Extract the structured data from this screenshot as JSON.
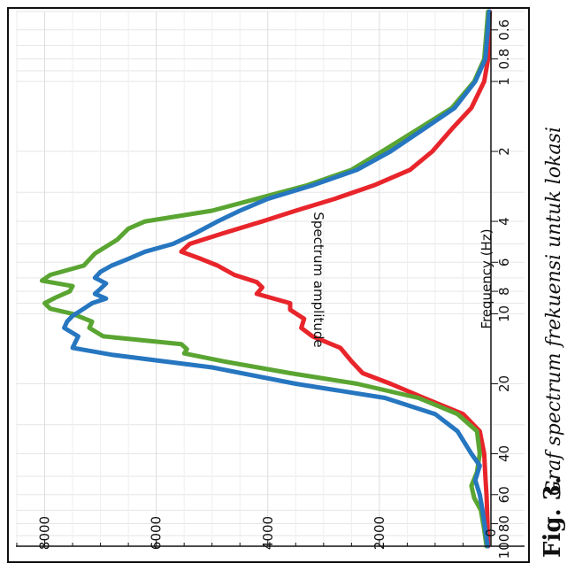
{
  "chart_data": {
    "type": "line",
    "xlabel": "Frequency (Hz)",
    "ylabel": "Spectrum amplitude",
    "x_scale": "log",
    "xlim": [
      0.5,
      100
    ],
    "ylim": [
      0,
      8500
    ],
    "grid": true,
    "x_ticks": [
      {
        "value": 0.6,
        "label": "0.6"
      },
      {
        "value": 0.8,
        "label": "0.8"
      },
      {
        "value": 1,
        "label": "1"
      },
      {
        "value": 2,
        "label": "2"
      },
      {
        "value": 4,
        "label": "4"
      },
      {
        "value": 6,
        "label": "6"
      },
      {
        "value": 8,
        "label": "8"
      },
      {
        "value": 10,
        "label": "10"
      },
      {
        "value": 20,
        "label": "20"
      },
      {
        "value": 40,
        "label": "40"
      },
      {
        "value": 60,
        "label": "60"
      },
      {
        "value": 80,
        "label": "80"
      },
      {
        "value": 100,
        "label": "100"
      }
    ],
    "y_ticks": [
      {
        "value": 0,
        "label": "0"
      },
      {
        "value": 2000,
        "label": "2000"
      },
      {
        "value": 4000,
        "label": "4000"
      },
      {
        "value": 6000,
        "label": "6000"
      },
      {
        "value": 8000,
        "label": "8000"
      }
    ],
    "series": [
      {
        "color": "#e8252b",
        "points": [
          [
            0.5,
            20
          ],
          [
            0.8,
            50
          ],
          [
            1.0,
            120
          ],
          [
            1.3,
            350
          ],
          [
            1.6,
            700
          ],
          [
            2.0,
            1050
          ],
          [
            2.4,
            1450
          ],
          [
            2.8,
            2100
          ],
          [
            3.2,
            2800
          ],
          [
            3.6,
            3500
          ],
          [
            4.0,
            4100
          ],
          [
            4.5,
            4800
          ],
          [
            5.0,
            5400
          ],
          [
            5.4,
            5550
          ],
          [
            5.8,
            5200
          ],
          [
            6.2,
            4900
          ],
          [
            6.8,
            4600
          ],
          [
            7.3,
            4200
          ],
          [
            7.7,
            4100
          ],
          [
            8.2,
            4200
          ],
          [
            9.0,
            3600
          ],
          [
            9.6,
            3600
          ],
          [
            10.5,
            3350
          ],
          [
            11.5,
            3400
          ],
          [
            12.5,
            3200
          ],
          [
            14,
            2700
          ],
          [
            16,
            2500
          ],
          [
            18,
            2300
          ],
          [
            20,
            1800
          ],
          [
            23,
            1200
          ],
          [
            27,
            500
          ],
          [
            32,
            200
          ],
          [
            40,
            120
          ],
          [
            50,
            100
          ],
          [
            60,
            80
          ],
          [
            80,
            60
          ],
          [
            100,
            50
          ]
        ]
      },
      {
        "color": "#5aa532",
        "points": [
          [
            0.5,
            50
          ],
          [
            0.8,
            120
          ],
          [
            1.0,
            300
          ],
          [
            1.3,
            700
          ],
          [
            1.6,
            1300
          ],
          [
            2.0,
            1950
          ],
          [
            2.4,
            2500
          ],
          [
            2.8,
            3300
          ],
          [
            3.2,
            4200
          ],
          [
            3.6,
            5000
          ],
          [
            4.0,
            6200
          ],
          [
            4.3,
            6500
          ],
          [
            4.8,
            6700
          ],
          [
            5.5,
            7100
          ],
          [
            6.2,
            7300
          ],
          [
            6.8,
            7900
          ],
          [
            7.2,
            8050
          ],
          [
            7.6,
            7500
          ],
          [
            8.0,
            7550
          ],
          [
            8.5,
            7800
          ],
          [
            9.0,
            8000
          ],
          [
            9.5,
            7900
          ],
          [
            10.0,
            7500
          ],
          [
            10.8,
            7150
          ],
          [
            11.5,
            7200
          ],
          [
            12.5,
            6950
          ],
          [
            13.5,
            5550
          ],
          [
            14.2,
            5450
          ],
          [
            14.8,
            5500
          ],
          [
            16,
            4800
          ],
          [
            18,
            3600
          ],
          [
            20,
            2400
          ],
          [
            23,
            1300
          ],
          [
            27,
            600
          ],
          [
            32,
            250
          ],
          [
            40,
            200
          ],
          [
            48,
            250
          ],
          [
            55,
            350
          ],
          [
            62,
            300
          ],
          [
            70,
            180
          ],
          [
            85,
            120
          ],
          [
            100,
            80
          ]
        ]
      },
      {
        "color": "#2676c0",
        "points": [
          [
            0.5,
            30
          ],
          [
            0.8,
            100
          ],
          [
            1.0,
            280
          ],
          [
            1.3,
            650
          ],
          [
            1.6,
            1200
          ],
          [
            2.0,
            1800
          ],
          [
            2.4,
            2400
          ],
          [
            2.8,
            3200
          ],
          [
            3.2,
            4000
          ],
          [
            3.6,
            4500
          ],
          [
            4.0,
            4900
          ],
          [
            4.5,
            5300
          ],
          [
            5.0,
            5700
          ],
          [
            5.4,
            6200
          ],
          [
            5.8,
            6500
          ],
          [
            6.2,
            6800
          ],
          [
            6.6,
            7000
          ],
          [
            7.0,
            7100
          ],
          [
            7.4,
            6900
          ],
          [
            7.8,
            7000
          ],
          [
            8.2,
            7100
          ],
          [
            8.6,
            6900
          ],
          [
            9.0,
            7150
          ],
          [
            9.5,
            7300
          ],
          [
            10.2,
            7500
          ],
          [
            10.8,
            7600
          ],
          [
            11.5,
            7650
          ],
          [
            12.5,
            7400
          ],
          [
            14,
            7500
          ],
          [
            15,
            6800
          ],
          [
            17,
            5000
          ],
          [
            20,
            3500
          ],
          [
            23,
            1900
          ],
          [
            27,
            1000
          ],
          [
            32,
            600
          ],
          [
            40,
            350
          ],
          [
            45,
            200
          ],
          [
            52,
            280
          ],
          [
            60,
            200
          ],
          [
            70,
            150
          ],
          [
            85,
            100
          ],
          [
            100,
            60
          ]
        ]
      }
    ]
  },
  "caption": {
    "label": "Fig. 3.",
    "text": "Graf spectrum frekuensi untuk lokasi"
  }
}
